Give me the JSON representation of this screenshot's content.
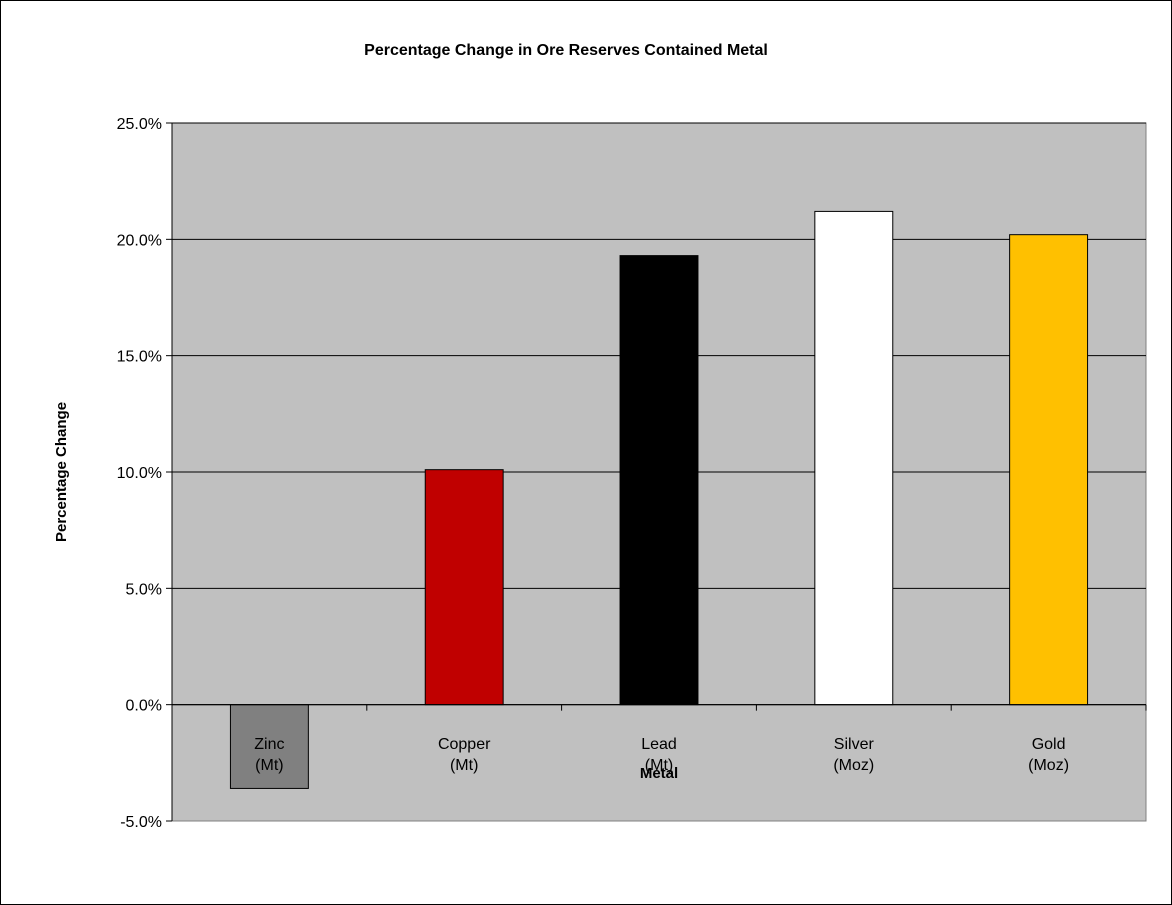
{
  "chart_data": {
    "type": "bar",
    "title": "Percentage Change in Ore Reserves Contained Metal",
    "xlabel": "Metal",
    "ylabel": "Percentage  Change",
    "categories": [
      {
        "name": "Zinc",
        "unit": "(Mt)"
      },
      {
        "name": "Copper",
        "unit": "(Mt)"
      },
      {
        "name": "Lead",
        "unit": "(Mt)"
      },
      {
        "name": "Silver",
        "unit": "(Moz)"
      },
      {
        "name": "Gold",
        "unit": "(Moz)"
      }
    ],
    "values": [
      -3.6,
      10.1,
      19.3,
      21.2,
      20.2
    ],
    "bar_colors": [
      "#808080",
      "#c00000",
      "#000000",
      "#ffffff",
      "#ffc000"
    ],
    "ylim": [
      -5,
      25
    ],
    "yticks": [
      -5,
      0,
      5,
      10,
      15,
      20,
      25
    ],
    "ytick_labels": [
      "-5.0%",
      "0.0%",
      "5.0%",
      "10.0%",
      "15.0%",
      "20.0%",
      "25.0%"
    ],
    "grid": true,
    "plot_background": "#c0c0c0",
    "legend": "none"
  }
}
